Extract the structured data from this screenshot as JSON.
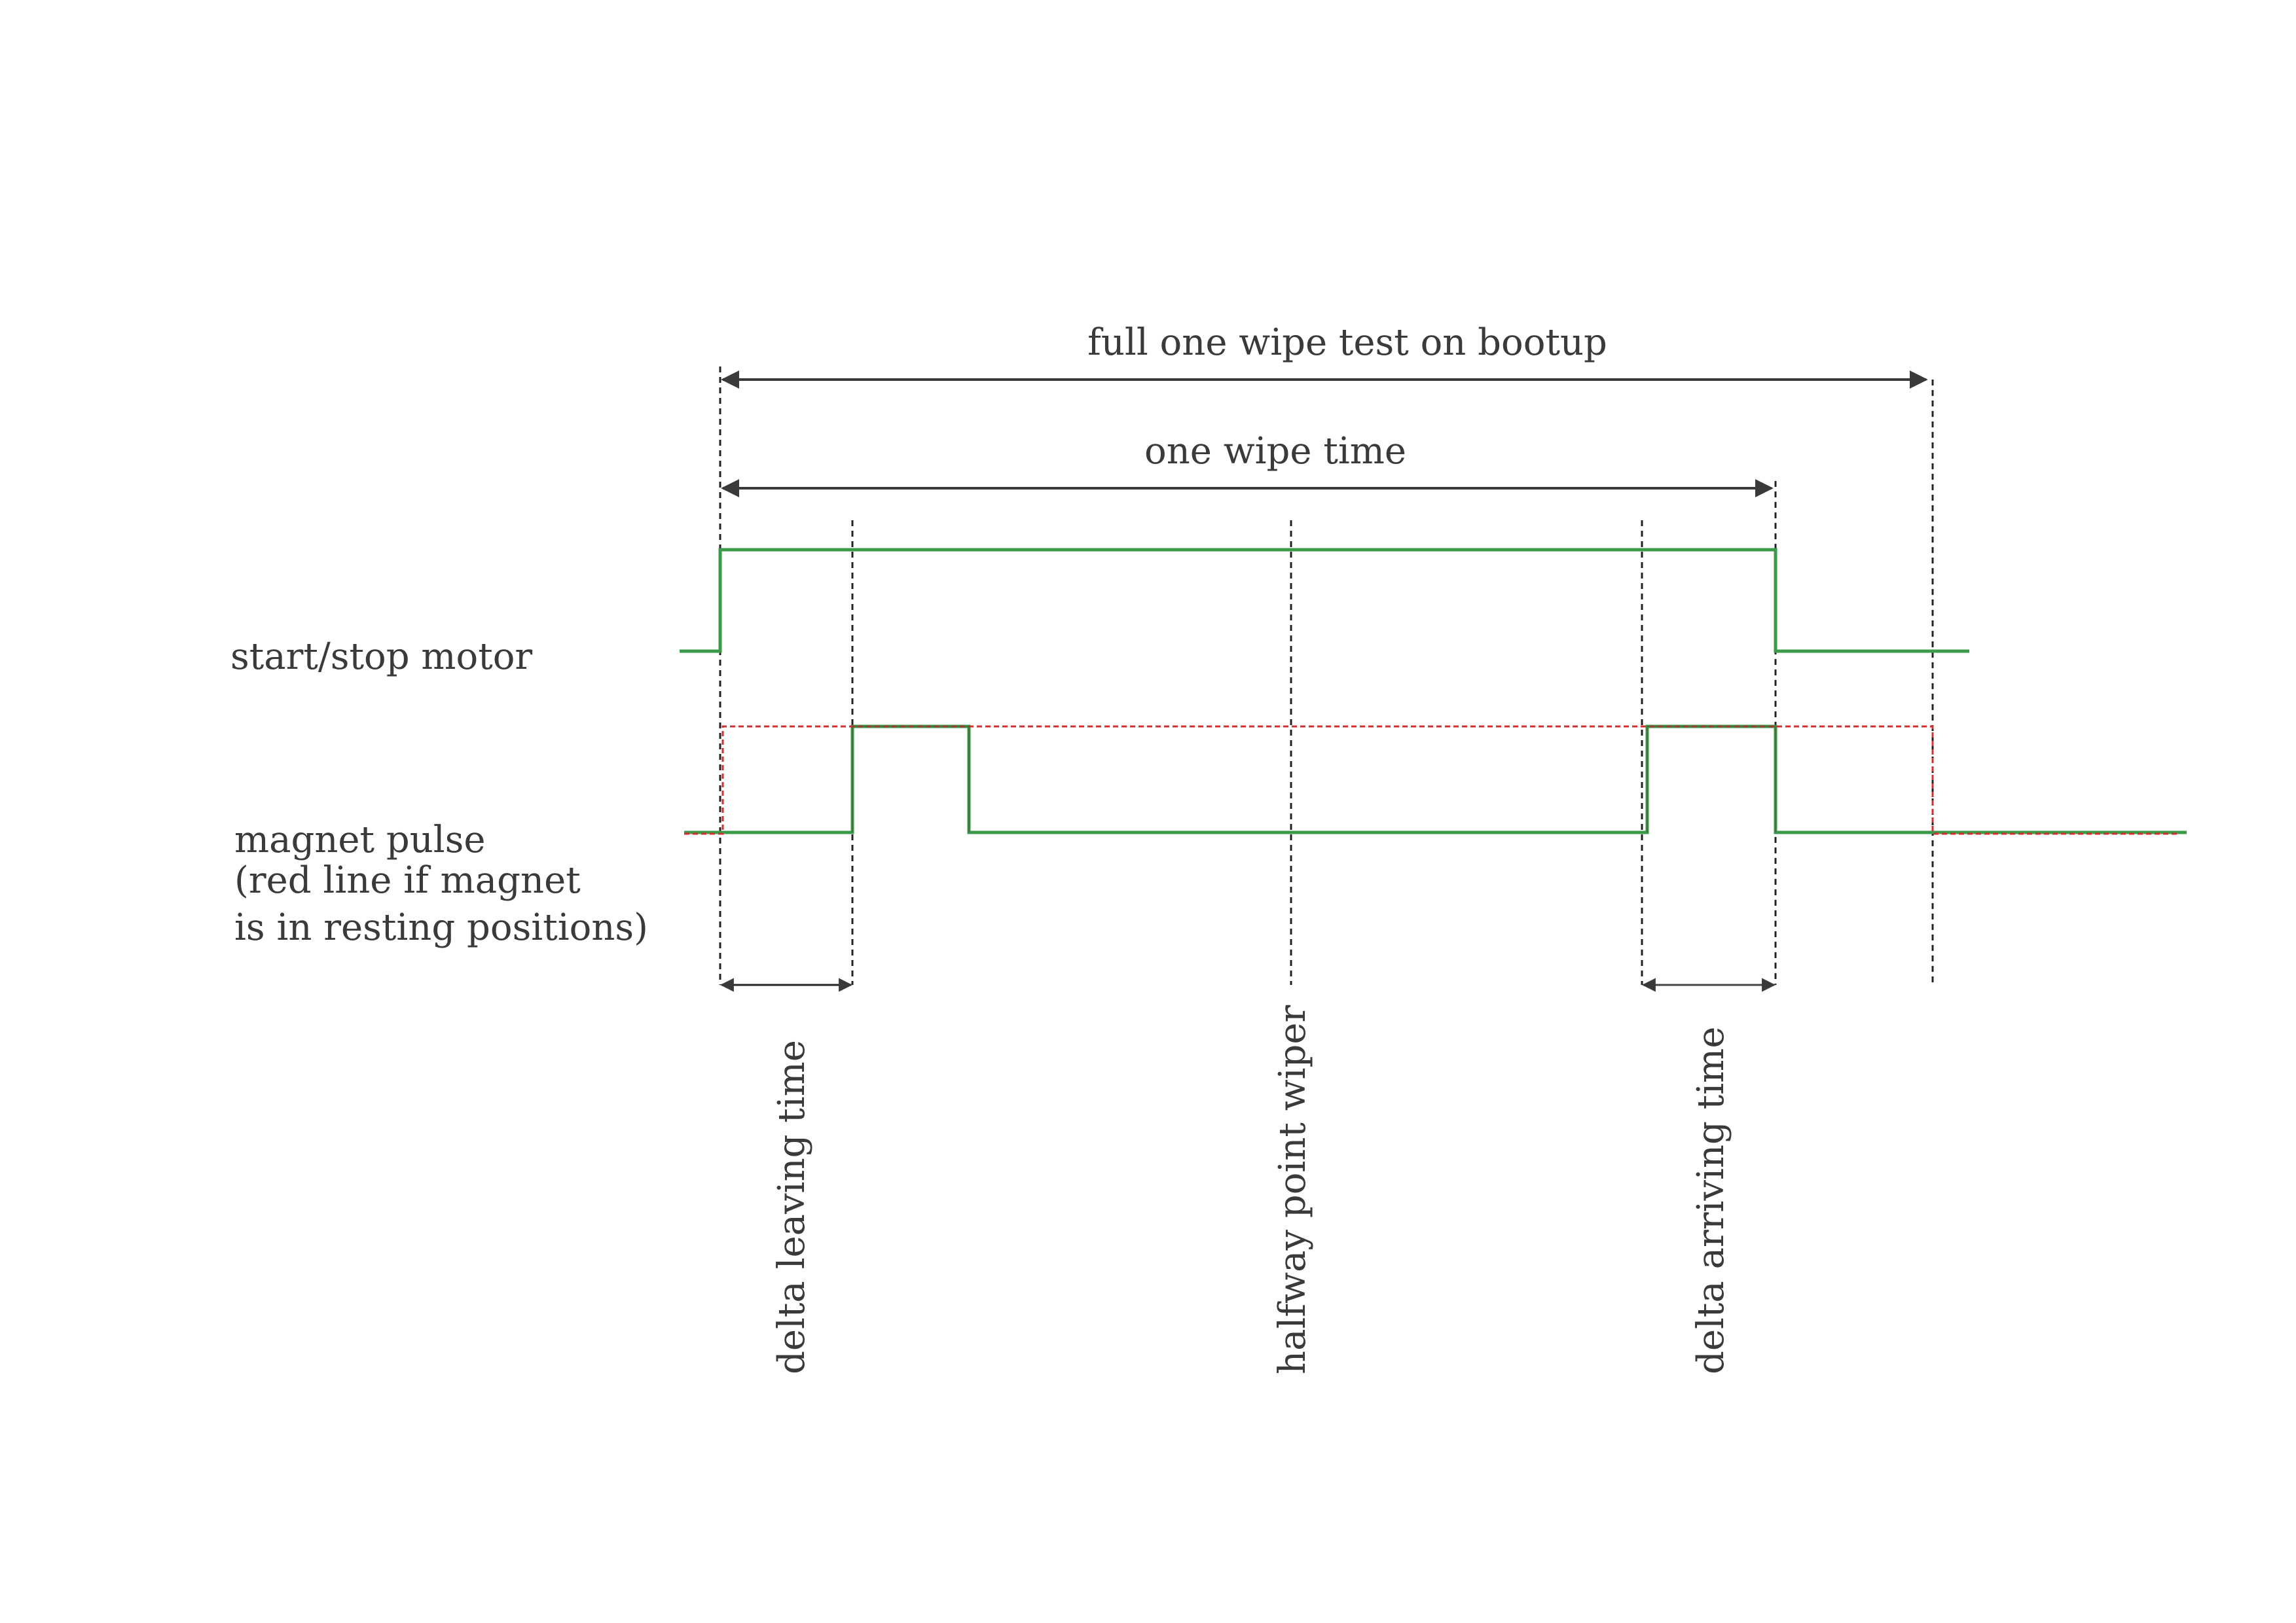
{
  "labels": {
    "full_wipe": "full one wipe test on bootup",
    "one_wipe": "one wipe time",
    "motor": "start/stop motor",
    "magnet_line1": "magnet pulse",
    "magnet_line2": "(red line if magnet",
    "magnet_line3": "is in resting positions)",
    "delta_leaving": "delta leaving time",
    "halfway": "halfway point wiper",
    "delta_arriving": "delta arriving time"
  },
  "colors": {
    "signal": "#3a9a4a",
    "resting_line": "#d23030",
    "guide": "#222222",
    "arrow": "#3a3a3a",
    "text": "#3a3a3a"
  }
}
